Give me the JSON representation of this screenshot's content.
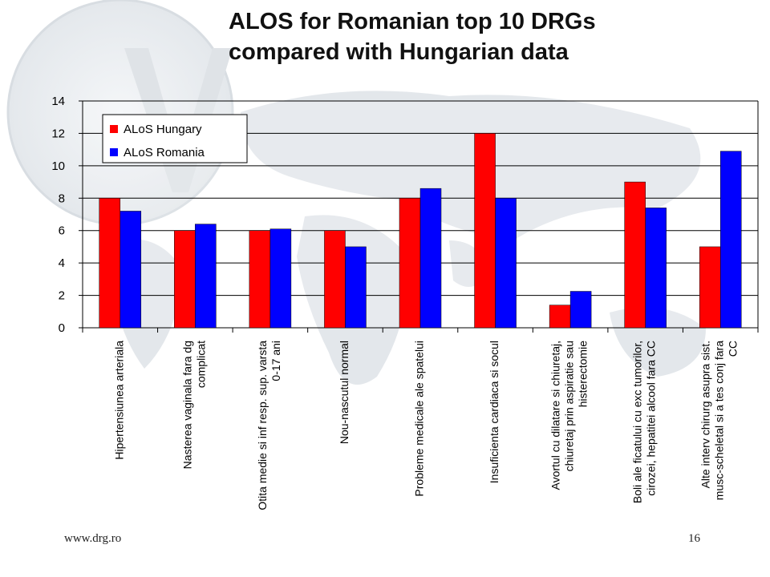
{
  "footer": {
    "website": "www.drg.ro",
    "page_number": "16"
  },
  "colors": {
    "hungary": "#ff0000",
    "romania": "#0000ff"
  },
  "chart_data": {
    "type": "bar",
    "title": "ALOS for Romanian top 10 DRGs compared with Hungarian data",
    "title_lines": [
      "ALOS for Romanian top 10 DRGs",
      "compared with Hungarian data"
    ],
    "xlabel": "",
    "ylabel": "",
    "ylim": [
      0,
      14
    ],
    "yticks": [
      0,
      2,
      4,
      6,
      8,
      10,
      12,
      14
    ],
    "grid": true,
    "legend_position": "top-left",
    "categories": [
      [
        "Hipertensiunea arteriala"
      ],
      [
        "Nasterea vaginala fara dg",
        "complicat"
      ],
      [
        "Otita medie si inf resp. sup. varsta",
        "0-17 ani"
      ],
      [
        "Nou-nascutul normal"
      ],
      [
        "Probleme medicale ale spatelui"
      ],
      [
        "Insuficienta cardiaca si socul"
      ],
      [
        "Avortul cu dilatare si chiuretaj,",
        "chiuretaj prin aspiratie sau",
        "histerectomie"
      ],
      [
        "Boli ale ficatului cu exc tumorilor,",
        "cirozei, hepatitei alcool fara CC"
      ],
      [
        "Alte interv chirurg asupra sist.",
        "musc-scheletal si a tes conj fara",
        "CC"
      ]
    ],
    "series": [
      {
        "name": "ALoS Hungary",
        "values": [
          8,
          6,
          6,
          6,
          8,
          12,
          1.4,
          9,
          5
        ]
      },
      {
        "name": "ALoS Romania",
        "values": [
          7.2,
          6.4,
          6.1,
          5.0,
          8.6,
          8.0,
          2.25,
          7.4,
          10.9
        ]
      }
    ]
  }
}
